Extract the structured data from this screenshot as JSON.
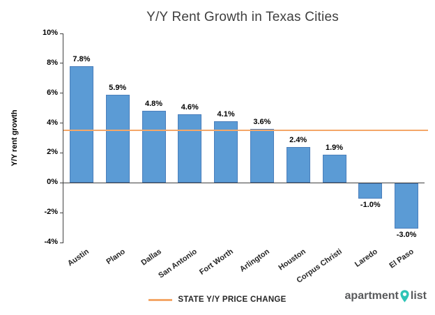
{
  "chart_data": {
    "type": "bar",
    "title": "Y/Y Rent Growth in Texas Cities",
    "ylabel": "Y/Y rent growth",
    "categories": [
      "Austin",
      "Plano",
      "Dallas",
      "San Antonio",
      "Fort Worth",
      "Arlington",
      "Houston",
      "Corpus Christi",
      "Laredo",
      "El Paso"
    ],
    "values": [
      7.8,
      5.9,
      4.8,
      4.6,
      4.1,
      3.6,
      2.4,
      1.9,
      -1.0,
      -3.0
    ],
    "value_labels": [
      "7.8%",
      "5.9%",
      "4.8%",
      "4.6%",
      "4.1%",
      "3.6%",
      "2.4%",
      "1.9%",
      "-1.0%",
      "-3.0%"
    ],
    "ylim": [
      -4,
      10
    ],
    "yticks": [
      {
        "value": 10,
        "label": "10%"
      },
      {
        "value": 8,
        "label": "8%"
      },
      {
        "value": 6,
        "label": "6%"
      },
      {
        "value": 4,
        "label": "4%"
      },
      {
        "value": 2,
        "label": "2%"
      },
      {
        "value": 0,
        "label": "0%"
      },
      {
        "value": -2,
        "label": "-2%"
      },
      {
        "value": -4,
        "label": "-4%"
      }
    ],
    "grid": false,
    "bar_color": "#5b9bd5",
    "reference_line": {
      "value": 3.5,
      "label": "STATE Y/Y PRICE CHANGE",
      "color": "#f4a768"
    },
    "legend_position": "bottom"
  },
  "branding": {
    "word1": "apartment",
    "word2": "list",
    "pin_color": "#2ec4b6",
    "text_color": "#58595b"
  }
}
